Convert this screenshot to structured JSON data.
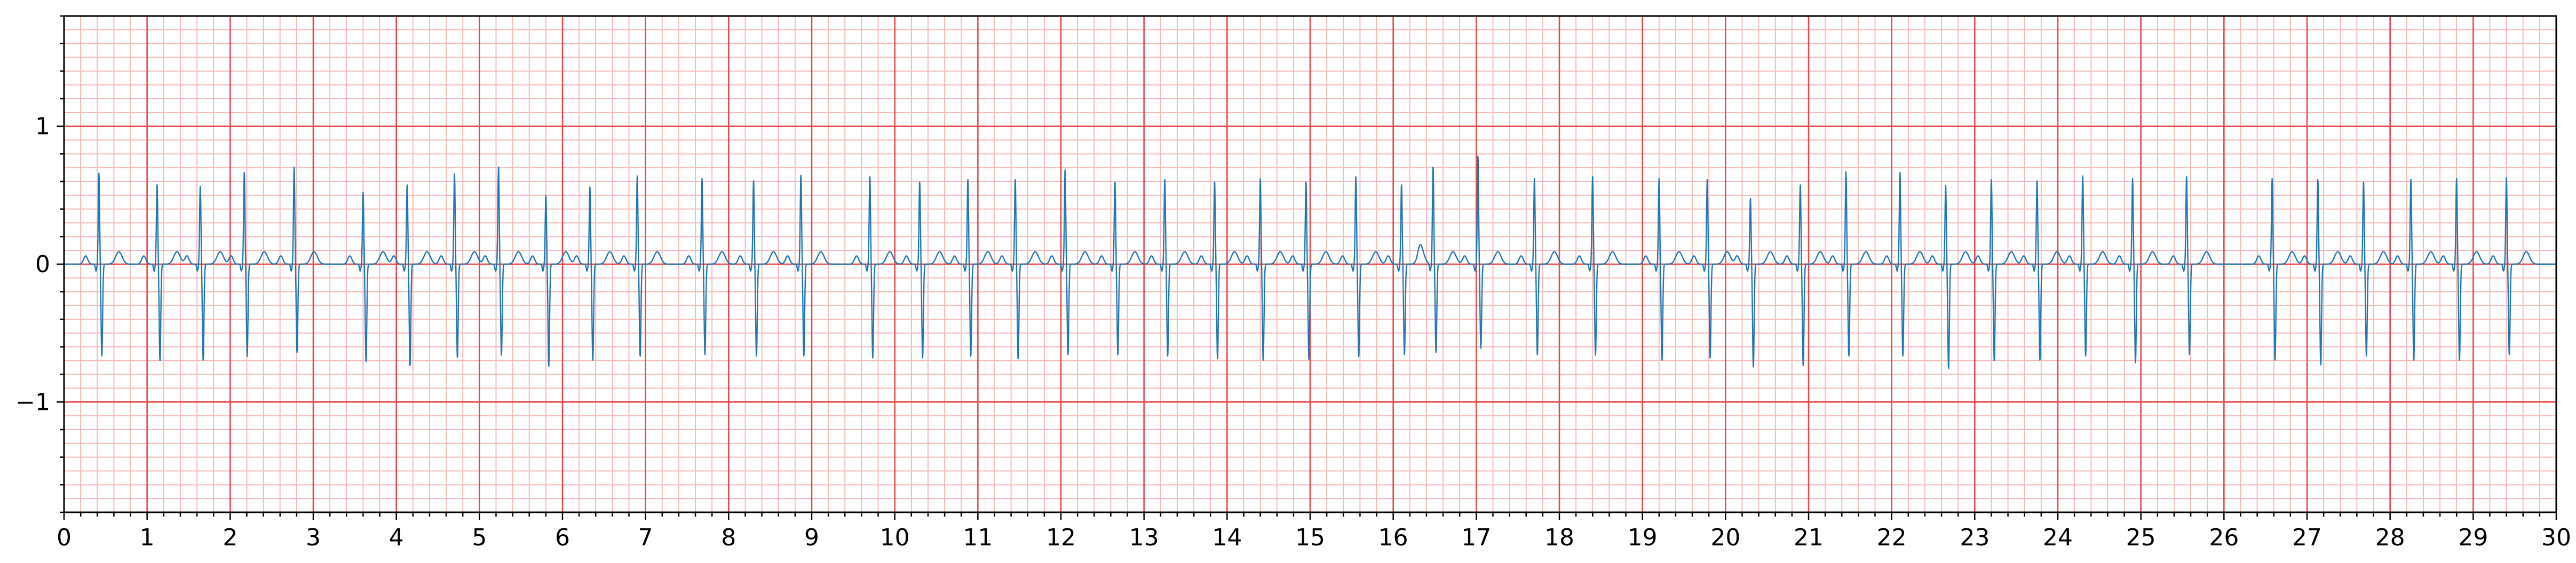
{
  "chart_data": {
    "type": "line",
    "title": "",
    "xlabel": "",
    "ylabel": "",
    "xlim": [
      0,
      30
    ],
    "ylim": [
      -1.8,
      1.8
    ],
    "x_ticks": [
      0,
      1,
      2,
      3,
      4,
      5,
      6,
      7,
      8,
      9,
      10,
      11,
      12,
      13,
      14,
      15,
      16,
      17,
      18,
      19,
      20,
      21,
      22,
      23,
      24,
      25,
      26,
      27,
      28,
      29,
      30
    ],
    "x_tick_labels": [
      "0",
      "1",
      "2",
      "3",
      "4",
      "5",
      "6",
      "7",
      "8",
      "9",
      "10",
      "11",
      "12",
      "13",
      "14",
      "15",
      "16",
      "17",
      "18",
      "19",
      "20",
      "21",
      "22",
      "23",
      "24",
      "25",
      "26",
      "27",
      "28",
      "29",
      "30"
    ],
    "y_ticks": [
      -1,
      0,
      1
    ],
    "y_tick_labels": [
      "−1",
      "0",
      "1"
    ],
    "grid": {
      "major": true,
      "minor": true,
      "major_x_step": 1,
      "minor_x_step": 0.2,
      "major_y_step": 1,
      "minor_y_step": 0.1
    },
    "legend": "none",
    "colors": {
      "trace": "#1f77b4",
      "major_grid": "#e84848",
      "minor_grid": "#f7b8b8",
      "axes": "#000000"
    },
    "series": [
      {
        "name": "",
        "beats": [
          {
            "t": 0.42,
            "r": 0.66,
            "s": -0.67
          },
          {
            "t": 1.12,
            "r": 0.58,
            "s": -0.7
          },
          {
            "t": 1.64,
            "r": 0.57,
            "s": -0.7
          },
          {
            "t": 2.17,
            "r": 0.67,
            "s": -0.67
          },
          {
            "t": 2.77,
            "r": 0.71,
            "s": -0.64
          },
          {
            "t": 3.6,
            "r": 0.52,
            "s": -0.71
          },
          {
            "t": 4.13,
            "r": 0.58,
            "s": -0.74
          },
          {
            "t": 4.7,
            "r": 0.66,
            "s": -0.68
          },
          {
            "t": 5.23,
            "r": 0.71,
            "s": -0.66
          },
          {
            "t": 5.8,
            "r": 0.5,
            "s": -0.74
          },
          {
            "t": 6.33,
            "r": 0.56,
            "s": -0.7
          },
          {
            "t": 6.9,
            "r": 0.64,
            "s": -0.67
          },
          {
            "t": 7.68,
            "r": 0.62,
            "s": -0.66
          },
          {
            "t": 8.3,
            "r": 0.61,
            "s": -0.67
          },
          {
            "t": 8.87,
            "r": 0.65,
            "s": -0.67
          },
          {
            "t": 9.7,
            "r": 0.64,
            "s": -0.68
          },
          {
            "t": 10.3,
            "r": 0.6,
            "s": -0.68
          },
          {
            "t": 10.88,
            "r": 0.62,
            "s": -0.67
          },
          {
            "t": 11.45,
            "r": 0.62,
            "s": -0.69
          },
          {
            "t": 12.05,
            "r": 0.69,
            "s": -0.66
          },
          {
            "t": 12.65,
            "r": 0.6,
            "s": -0.66
          },
          {
            "t": 13.25,
            "r": 0.62,
            "s": -0.67
          },
          {
            "t": 13.85,
            "r": 0.6,
            "s": -0.69
          },
          {
            "t": 14.4,
            "r": 0.62,
            "s": -0.7
          },
          {
            "t": 14.95,
            "r": 0.6,
            "s": -0.69
          },
          {
            "t": 15.55,
            "r": 0.64,
            "s": -0.67
          },
          {
            "t": 16.1,
            "r": 0.58,
            "s": -0.66
          },
          {
            "t": 16.48,
            "r": 0.71,
            "s": -0.64
          },
          {
            "t": 17.02,
            "r": 0.79,
            "s": -0.61
          },
          {
            "t": 17.7,
            "r": 0.62,
            "s": -0.66
          },
          {
            "t": 18.4,
            "r": 0.64,
            "s": -0.66
          },
          {
            "t": 19.2,
            "r": 0.62,
            "s": -0.7
          },
          {
            "t": 19.78,
            "r": 0.62,
            "s": -0.68
          },
          {
            "t": 20.3,
            "r": 0.48,
            "s": -0.75
          },
          {
            "t": 20.9,
            "r": 0.58,
            "s": -0.74
          },
          {
            "t": 21.45,
            "r": 0.67,
            "s": -0.67
          },
          {
            "t": 22.1,
            "r": 0.67,
            "s": -0.67
          },
          {
            "t": 22.65,
            "r": 0.57,
            "s": -0.76
          },
          {
            "t": 23.2,
            "r": 0.62,
            "s": -0.7
          },
          {
            "t": 23.75,
            "r": 0.61,
            "s": -0.7
          },
          {
            "t": 24.3,
            "r": 0.64,
            "s": -0.67
          },
          {
            "t": 24.9,
            "r": 0.62,
            "s": -0.72
          },
          {
            "t": 25.55,
            "r": 0.64,
            "s": -0.66
          },
          {
            "t": 26.58,
            "r": 0.62,
            "s": -0.7
          },
          {
            "t": 27.13,
            "r": 0.62,
            "s": -0.73
          },
          {
            "t": 27.68,
            "r": 0.6,
            "s": -0.67
          },
          {
            "t": 28.25,
            "r": 0.62,
            "s": -0.7
          },
          {
            "t": 28.8,
            "r": 0.62,
            "s": -0.7
          },
          {
            "t": 29.4,
            "r": 0.63,
            "s": -0.66
          }
        ]
      }
    ]
  }
}
